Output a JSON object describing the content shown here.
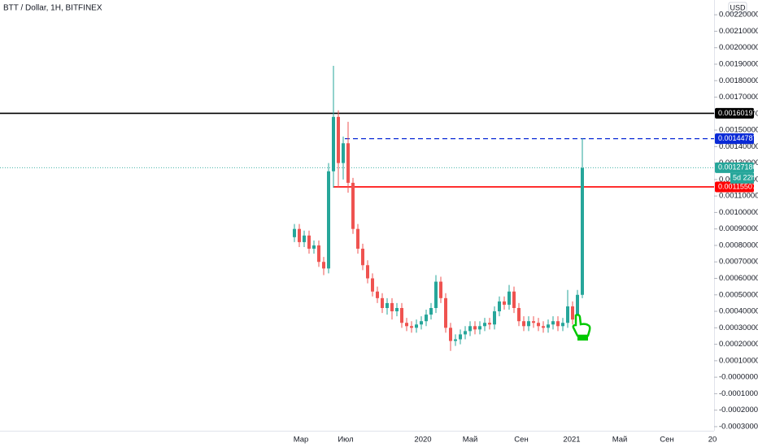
{
  "header": {
    "title": "BTT / Dollar, 1H, BITFINEX",
    "currency": "USD",
    "countdown": "5d 22h"
  },
  "chart_data": {
    "type": "candlestick",
    "ylim": [
      -0.00032,
      0.00226
    ],
    "yticks": [
      {
        "value": 0.0022,
        "label": "0.00220000"
      },
      {
        "value": 0.0021,
        "label": "0.00210000"
      },
      {
        "value": 0.002,
        "label": "0.00200000"
      },
      {
        "value": 0.0019,
        "label": "0.00190000"
      },
      {
        "value": 0.0018,
        "label": "0.00180000"
      },
      {
        "value": 0.0017,
        "label": "0.00170000"
      },
      {
        "value": 0.0016,
        "label": "0.00160000"
      },
      {
        "value": 0.0015,
        "label": "0.00150000"
      },
      {
        "value": 0.0014,
        "label": "0.00140000"
      },
      {
        "value": 0.0013,
        "label": "0.00130000"
      },
      {
        "value": 0.0012,
        "label": "0.00120000"
      },
      {
        "value": 0.0011,
        "label": "0.00110000"
      },
      {
        "value": 0.001,
        "label": "0.00100000"
      },
      {
        "value": 0.0009,
        "label": "0.00090000"
      },
      {
        "value": 0.0008,
        "label": "0.00080000"
      },
      {
        "value": 0.0007,
        "label": "0.00070000"
      },
      {
        "value": 0.0006,
        "label": "0.00060000"
      },
      {
        "value": 0.0005,
        "label": "0.00050000"
      },
      {
        "value": 0.0004,
        "label": "0.00040000"
      },
      {
        "value": 0.0003,
        "label": "0.00030000"
      },
      {
        "value": 0.0002,
        "label": "0.00020000"
      },
      {
        "value": 0.0001,
        "label": "0.00010000"
      },
      {
        "value": 0,
        "label": "-0.00000000"
      },
      {
        "value": -0.0001,
        "label": "-0.00010000"
      },
      {
        "value": -0.0002,
        "label": "-0.00020000"
      },
      {
        "value": -0.0003,
        "label": "-0.00030000"
      }
    ],
    "x_labels": [
      "Мар",
      "Июл",
      "2020",
      "Май",
      "Сен",
      "2021",
      "Май",
      "Сен",
      "20"
    ],
    "up_color": "#26a69a",
    "down_color": "#ef5350",
    "open": [
      0.00085,
      0.0009,
      0.00082,
      0.00086,
      0.00078,
      0.0008,
      0.0007,
      0.00066,
      0.00125,
      0.00158,
      0.0013,
      0.00142,
      0.00118,
      0.0009,
      0.00078,
      0.00068,
      0.0006,
      0.00052,
      0.00048,
      0.00042,
      0.00045,
      0.0004,
      0.00042,
      0.00033,
      0.00031,
      0.0003,
      0.00032,
      0.00034,
      0.00038,
      0.00042,
      0.00058,
      0.00048,
      0.0003,
      0.00022,
      0.00023,
      0.00026,
      0.00028,
      0.00031,
      0.00029,
      0.00031,
      0.00033,
      0.00032,
      0.0004,
      0.00046,
      0.00044,
      0.00052,
      0.00042,
      0.00034,
      0.00031,
      0.00034,
      0.00033,
      0.00031,
      0.0003,
      0.00032,
      0.00034,
      0.00031,
      0.00033,
      0.00043,
      0.00035,
      0.0005
    ],
    "high": [
      0.00093,
      0.00093,
      0.00089,
      0.00089,
      0.00083,
      0.00083,
      0.00073,
      0.0013,
      0.00189,
      0.00162,
      0.00146,
      0.00155,
      0.00121,
      0.00093,
      0.00081,
      0.00071,
      0.00063,
      0.00055,
      0.00051,
      0.00048,
      0.00048,
      0.00045,
      0.00045,
      0.00036,
      0.00034,
      0.00035,
      0.00037,
      0.00041,
      0.00045,
      0.00062,
      0.00061,
      0.00051,
      0.00033,
      0.00026,
      0.00029,
      0.00031,
      0.00034,
      0.00034,
      0.00034,
      0.00036,
      0.00036,
      0.00043,
      0.00049,
      0.00049,
      0.00056,
      0.00055,
      0.00045,
      0.00037,
      0.00037,
      0.00037,
      0.00036,
      0.00034,
      0.00035,
      0.00037,
      0.00037,
      0.00036,
      0.00053,
      0.00046,
      0.00053,
      0.00145
    ],
    "low": [
      0.00082,
      0.00079,
      0.00079,
      0.00075,
      0.00075,
      0.00067,
      0.00062,
      0.00063,
      0.00115,
      0.00115,
      0.0012,
      0.00112,
      0.00087,
      0.00075,
      0.00065,
      0.00057,
      0.00049,
      0.00045,
      0.00039,
      0.00038,
      0.00035,
      0.00037,
      0.0003,
      0.00028,
      0.00027,
      0.00027,
      0.00029,
      0.00031,
      0.00035,
      0.00039,
      0.00045,
      0.00027,
      0.00016,
      0.00019,
      0.0002,
      0.00023,
      0.00025,
      0.00026,
      0.00026,
      0.00028,
      0.00029,
      0.00029,
      0.00037,
      0.00041,
      0.00041,
      0.00039,
      0.00031,
      0.00028,
      0.00028,
      0.0003,
      0.00028,
      0.00027,
      0.00027,
      0.00029,
      0.00028,
      0.00028,
      0.0003,
      0.00032,
      0.00032,
      0.00048
    ],
    "close": [
      0.0009,
      0.00082,
      0.00086,
      0.00078,
      0.0008,
      0.0007,
      0.00066,
      0.00125,
      0.00158,
      0.0013,
      0.00142,
      0.00118,
      0.0009,
      0.00078,
      0.00068,
      0.0006,
      0.00052,
      0.00048,
      0.00042,
      0.00045,
      0.0004,
      0.00042,
      0.00033,
      0.00031,
      0.0003,
      0.00032,
      0.00034,
      0.00038,
      0.00042,
      0.00058,
      0.00048,
      0.0003,
      0.00022,
      0.00023,
      0.00026,
      0.00028,
      0.00031,
      0.00029,
      0.00031,
      0.00033,
      0.00032,
      0.0004,
      0.00046,
      0.00044,
      0.00052,
      0.00042,
      0.00034,
      0.00031,
      0.00034,
      0.00033,
      0.00031,
      0.0003,
      0.00032,
      0.00034,
      0.00031,
      0.00033,
      0.00043,
      0.00035,
      0.0005,
      0.00127
    ],
    "levels": [
      {
        "value": 0.00160197,
        "label": "0.00160197",
        "color": "#000000",
        "style": "solid"
      },
      {
        "value": 0.00144787,
        "label": "0.00144787",
        "color": "#0a2ad6",
        "style": "dashed"
      },
      {
        "value": 0.0012718,
        "label": "0.00127180",
        "color": "#26a69a",
        "style": "dotted"
      },
      {
        "value": 0.00115507,
        "label": "0.00115507",
        "color": "#ff0000",
        "style": "solid"
      }
    ]
  }
}
